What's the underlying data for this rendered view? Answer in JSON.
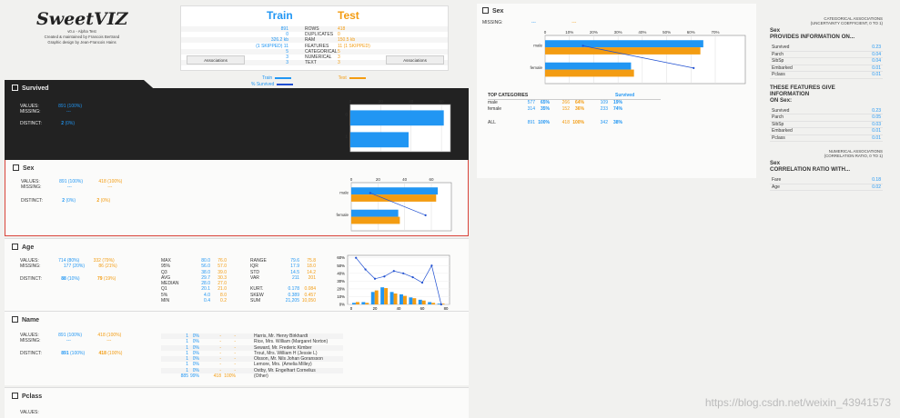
{
  "logo": {
    "title": "SweetVIZ",
    "version": "v0.x - Alpha Test",
    "line1": "Created & maintained by Francois Bertrand",
    "line2": "Graphic design by Jean-Francois Hains"
  },
  "summary": {
    "train_label": "Train",
    "test_label": "Test",
    "rows": [
      {
        "train": "891",
        "label": "ROWS",
        "test": "418"
      },
      {
        "train": "0",
        "label": "DUPLICATES",
        "test": "0"
      },
      {
        "train": "326.2 kb",
        "label": "RAM",
        "test": "150.5 kb"
      },
      {
        "train": "(1 SKIPPED) 11",
        "label": "FEATURES",
        "test": "11 (1 SKIPPED)"
      },
      {
        "train": "5",
        "label": "CATEGORICAL",
        "test": "5"
      },
      {
        "train": "3",
        "label": "NUMERICAL",
        "test": "3"
      },
      {
        "train": "3",
        "label": "TEXT",
        "test": "3"
      }
    ],
    "assoc_left": "Associations",
    "assoc_right": "Associations"
  },
  "legend": {
    "train": "Train",
    "test": "Test",
    "survived": "% Survived"
  },
  "survived": {
    "title": "Survived",
    "values_label": "VALUES:",
    "values": "891 (100%)",
    "missing_label": "MISSING:",
    "missing": "---",
    "distinct_label": "DISTINCT:",
    "distinct": "2",
    "distinct_pct": "(0%)",
    "chart": {
      "categories": [
        "0",
        "1"
      ],
      "values": [
        61.6,
        38.4
      ],
      "ticks": [
        "0",
        "20",
        "40",
        "60"
      ]
    }
  },
  "sex": {
    "title": "Sex",
    "values_label": "VALUES:",
    "values_train": "891 (100%)",
    "values_test": "418 (100%)",
    "missing_label": "MISSING:",
    "missing_train": "---",
    "missing_test": "---",
    "distinct_label": "DISTINCT:",
    "distinct_train": "2",
    "distinct_train_pct": "(0%)",
    "distinct_test": "2",
    "distinct_test_pct": "(0%)",
    "chart": {
      "categories": [
        "male",
        "female"
      ],
      "train": [
        64.8,
        35.2
      ],
      "test": [
        63.6,
        36.4
      ],
      "survived": [
        18.9,
        74.2
      ],
      "ticks": [
        "0",
        "20",
        "40",
        "60"
      ]
    }
  },
  "age": {
    "title": "Age",
    "values_label": "VALUES:",
    "values_train": "714",
    "values_train_pct": "(80%)",
    "values_test": "332",
    "values_test_pct": "(79%)",
    "missing_label": "MISSING:",
    "missing_train": "177",
    "missing_train_pct": "(20%)",
    "missing_test": "86",
    "missing_test_pct": "(21%)",
    "distinct_label": "DISTINCT:",
    "distinct_train": "88",
    "distinct_train_pct": "(10%)",
    "distinct_test": "79",
    "distinct_test_pct": "(19%)",
    "stats1": [
      {
        "k": "MAX",
        "a": "80.0",
        "b": "76.0"
      },
      {
        "k": "95%",
        "a": "56.0",
        "b": "57.0"
      },
      {
        "k": "Q3",
        "a": "38.0",
        "b": "39.0"
      },
      {
        "k": "AVG",
        "a": "29.7",
        "b": "30.3"
      },
      {
        "k": "MEDIAN",
        "a": "28.0",
        "b": "27.0"
      },
      {
        "k": "Q1",
        "a": "20.1",
        "b": "21.0"
      },
      {
        "k": "5%",
        "a": "4.0",
        "b": "8.0"
      },
      {
        "k": "MIN",
        "a": "0.4",
        "b": "0.2"
      }
    ],
    "stats2": [
      {
        "k": "RANGE",
        "a": "79.6",
        "b": "75.8"
      },
      {
        "k": "IQR",
        "a": "17.9",
        "b": "18.0"
      },
      {
        "k": "STD",
        "a": "14.5",
        "b": "14.2"
      },
      {
        "k": "VAR",
        "a": "211",
        "b": "201"
      },
      {
        "k": "",
        "a": "",
        "b": ""
      },
      {
        "k": "KURT.",
        "a": "0.178",
        "b": "0.084"
      },
      {
        "k": "SKEW",
        "a": "0.389",
        "b": "0.457"
      },
      {
        "k": "SUM",
        "a": "21,205",
        "b": "10,050"
      }
    ],
    "chart": {
      "x_ticks": [
        "0",
        "20",
        "40",
        "60",
        "80"
      ],
      "y_ticks": [
        "0%",
        "10%",
        "20%",
        "30%",
        "40%",
        "50%",
        "60%"
      ],
      "train": [
        2,
        3,
        16,
        22,
        16,
        13,
        9,
        6,
        3,
        1
      ],
      "test": [
        3,
        2,
        18,
        21,
        14,
        11,
        8,
        5,
        2,
        1
      ],
      "survived": [
        60,
        45,
        33,
        36,
        43,
        40,
        35,
        28,
        50,
        0
      ]
    }
  },
  "name": {
    "title": "Name",
    "values_label": "VALUES:",
    "values_train": "891 (100%)",
    "values_test": "418 (100%)",
    "missing_label": "MISSING:",
    "missing_train": "---",
    "missing_test": "---",
    "distinct_label": "DISTINCT:",
    "distinct_train": "891",
    "distinct_train_pct": "(100%)",
    "distinct_test": "418",
    "distinct_test_pct": "(100%)",
    "rows": [
      {
        "n": "1",
        "p": "0%",
        "t": "-",
        "tp": "-",
        "name": "Harris, Mr. Henry Birkhardt"
      },
      {
        "n": "1",
        "p": "0%",
        "t": "-",
        "tp": "-",
        "name": "Rice, Mrs. William (Margaret Norton)"
      },
      {
        "n": "1",
        "p": "0%",
        "t": "-",
        "tp": "-",
        "name": "Seward, Mr. Frederic Kimber"
      },
      {
        "n": "1",
        "p": "0%",
        "t": "-",
        "tp": "-",
        "name": "Trout, Mrs. William H (Jessie L)"
      },
      {
        "n": "1",
        "p": "0%",
        "t": "-",
        "tp": "-",
        "name": "Olsson, Mr. Nils Johan Goransson"
      },
      {
        "n": "1",
        "p": "0%",
        "t": "-",
        "tp": "-",
        "name": "Lemore, Mrs. (Amelia Milley)"
      },
      {
        "n": "1",
        "p": "0%",
        "t": "-",
        "tp": "-",
        "name": "Ostby, Mr. Engelhart Cornelius"
      },
      {
        "n": "885",
        "p": "99%",
        "t": "418",
        "tp": "100%",
        "name": "(Other)"
      }
    ]
  },
  "pclass": {
    "title": "Pclass",
    "values_label": "VALUES:"
  },
  "detail": {
    "title": "Sex",
    "missing_label": "MISSING:",
    "missing_train": "---",
    "missing_test": "---",
    "ticks": [
      "0",
      "10%",
      "20%",
      "30%",
      "40%",
      "50%",
      "60%",
      "70%"
    ],
    "chart": {
      "categories": [
        "male",
        "female"
      ],
      "train": [
        64.8,
        35.2
      ],
      "test": [
        63.6,
        36.4
      ],
      "survived": [
        18.9,
        74.2
      ]
    },
    "top_label": "TOP CATEGORIES",
    "survived_label": "Survived",
    "rows": [
      {
        "cat": "male",
        "a": "577",
        "ap": "65%",
        "b": "266",
        "bp": "64%",
        "c": "109",
        "cp": "19%"
      },
      {
        "cat": "female",
        "a": "314",
        "ap": "35%",
        "b": "152",
        "bp": "36%",
        "c": "233",
        "cp": "74%"
      }
    ],
    "all": {
      "cat": "ALL",
      "a": "891",
      "ap": "100%",
      "b": "418",
      "bp": "100%",
      "c": "342",
      "cp": "38%"
    }
  },
  "assoc": {
    "header1": "CATEGORICAL ASSOCIATIONS",
    "header1b": "(UNCERTAINTY COEFFICIENT, 0 TO 1)",
    "t1a": "Sex",
    "t1b": "PROVIDES INFORMATION ON...",
    "rows1": [
      {
        "k": "Survived",
        "v": "0.23"
      },
      {
        "k": "Parch",
        "v": "0.04"
      },
      {
        "k": "SibSp",
        "v": "0.04"
      },
      {
        "k": "Embarked",
        "v": "0.01"
      },
      {
        "k": "Pclass",
        "v": "0.01"
      }
    ],
    "t2a": "THESE FEATURES GIVE",
    "t2b": "INFORMATION",
    "t2c": "ON Sex:",
    "rows2": [
      {
        "k": "Survived",
        "v": "0.23"
      },
      {
        "k": "Parch",
        "v": "0.05"
      },
      {
        "k": "SibSp",
        "v": "0.03"
      },
      {
        "k": "Embarked",
        "v": "0.01"
      },
      {
        "k": "Pclass",
        "v": "0.01"
      }
    ],
    "header2": "NUMERICAL ASSOCIATIONS",
    "header2b": "(CORRELATION RATIO, 0 TO 1)",
    "t3a": "Sex",
    "t3b": "CORRELATION RATIO WITH...",
    "rows3": [
      {
        "k": "Fare",
        "v": "0.18"
      },
      {
        "k": "Age",
        "v": "0.02"
      }
    ]
  },
  "watermark": "https://blog.csdn.net/weixin_43941573",
  "colors": {
    "train": "#2196f3",
    "test": "#f39c12",
    "line": "#1f4fd1"
  }
}
